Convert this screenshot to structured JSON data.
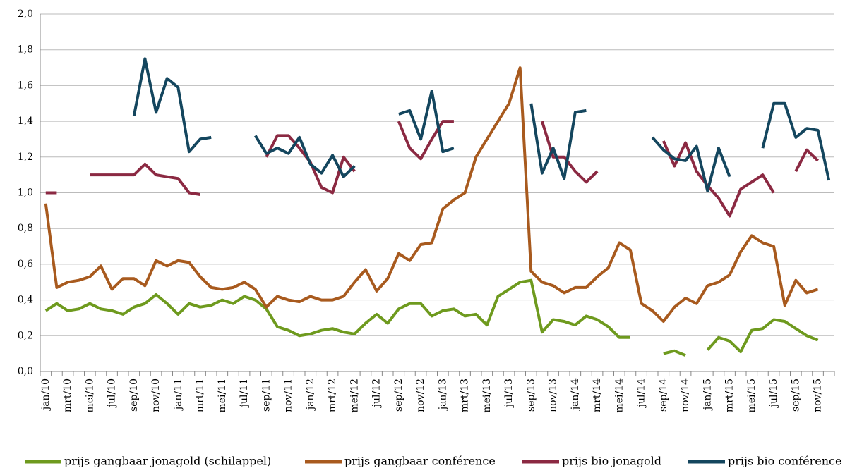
{
  "chart_data": {
    "type": "line",
    "categories": [
      "jan/10",
      null,
      "mrt/10",
      null,
      "mei/10",
      null,
      "jul/10",
      null,
      "sep/10",
      null,
      "nov/10",
      null,
      "jan/11",
      null,
      "mrt/11",
      null,
      "mei/11",
      null,
      "jul/11",
      null,
      "sep/11",
      null,
      "nov/11",
      null,
      "jan/12",
      null,
      "mrt/12",
      null,
      "mei/12",
      null,
      "jul/12",
      null,
      "sep/12",
      null,
      "nov/12",
      null,
      "jan/13",
      null,
      "mrt/13",
      null,
      "mei/13",
      null,
      "jul/13",
      null,
      "sep/13",
      null,
      "nov/13",
      null,
      "jan/14",
      null,
      "mrt/14",
      null,
      "mei/14",
      null,
      "jul/14",
      null,
      "sep/14",
      null,
      "nov/14",
      null,
      "jan/15",
      null,
      "mrt/15",
      null,
      "mei/15",
      null,
      "jul/15",
      null,
      "sep/15",
      null,
      "nov/15",
      null
    ],
    "series": [
      {
        "name": "prijs gangbaar jonagold (schilappel)",
        "color": "#6e9a1e",
        "values": [
          0.34,
          0.38,
          0.34,
          0.35,
          0.38,
          0.35,
          0.34,
          0.32,
          0.36,
          0.38,
          0.43,
          0.38,
          0.32,
          0.38,
          0.36,
          0.37,
          0.4,
          0.38,
          0.42,
          0.4,
          0.35,
          0.25,
          0.23,
          0.2,
          0.21,
          0.23,
          0.24,
          0.22,
          0.21,
          0.27,
          0.32,
          0.27,
          0.35,
          0.38,
          0.38,
          0.31,
          0.34,
          0.35,
          0.31,
          0.32,
          0.26,
          0.42,
          0.46,
          0.5,
          0.51,
          0.22,
          0.29,
          0.28,
          0.26,
          0.31,
          0.29,
          0.25,
          0.19,
          0.19,
          null,
          null,
          0.1,
          0.115,
          0.09,
          null,
          0.12,
          0.19,
          0.17,
          0.11,
          0.23,
          0.24,
          0.29,
          0.28,
          0.24,
          0.2,
          0.175,
          null
        ]
      },
      {
        "name": "prijs gangbaar conférence",
        "color": "#a85a1e",
        "values": [
          0.94,
          0.47,
          0.5,
          0.51,
          0.53,
          0.59,
          0.46,
          0.52,
          0.52,
          0.48,
          0.62,
          0.59,
          0.62,
          0.61,
          0.53,
          0.47,
          0.46,
          0.47,
          0.5,
          0.46,
          0.36,
          0.42,
          0.4,
          0.39,
          0.42,
          0.4,
          0.4,
          0.42,
          0.5,
          0.57,
          0.45,
          0.52,
          0.66,
          0.62,
          0.71,
          0.72,
          0.91,
          0.96,
          1.0,
          1.2,
          1.3,
          1.4,
          1.5,
          1.7,
          0.56,
          0.5,
          0.48,
          0.44,
          0.47,
          0.47,
          0.53,
          0.58,
          0.72,
          0.68,
          0.38,
          0.34,
          0.28,
          0.36,
          0.41,
          0.38,
          0.48,
          0.5,
          0.54,
          0.67,
          0.76,
          0.72,
          0.7,
          0.37,
          0.51,
          0.44,
          0.46,
          null
        ]
      },
      {
        "name": "prijs bio jonagold",
        "color": "#8b2942",
        "values": [
          1.0,
          1.0,
          null,
          null,
          1.1,
          1.1,
          1.1,
          1.1,
          1.1,
          1.16,
          1.1,
          1.09,
          1.08,
          1.0,
          0.99,
          null,
          null,
          null,
          null,
          null,
          1.2,
          1.32,
          1.32,
          1.25,
          1.17,
          1.03,
          1.0,
          1.2,
          1.12,
          null,
          null,
          null,
          1.4,
          1.25,
          1.19,
          1.3,
          1.4,
          1.4,
          null,
          null,
          null,
          null,
          null,
          null,
          null,
          1.4,
          1.2,
          1.2,
          1.12,
          1.06,
          1.12,
          null,
          null,
          null,
          null,
          null,
          1.29,
          1.15,
          1.28,
          1.12,
          1.04,
          0.97,
          0.87,
          1.02,
          1.06,
          1.1,
          1.0,
          null,
          1.12,
          1.24,
          1.18,
          null
        ]
      },
      {
        "name": "prijs bio conférence",
        "color": "#14465e",
        "values": [
          null,
          null,
          null,
          null,
          null,
          null,
          null,
          null,
          1.43,
          1.75,
          1.45,
          1.64,
          1.59,
          1.23,
          1.3,
          1.31,
          null,
          null,
          null,
          1.32,
          1.22,
          1.25,
          1.22,
          1.31,
          1.16,
          1.11,
          1.21,
          1.09,
          1.15,
          null,
          null,
          null,
          1.44,
          1.46,
          1.3,
          1.57,
          1.23,
          1.25,
          null,
          null,
          null,
          null,
          null,
          null,
          1.5,
          1.11,
          1.25,
          1.08,
          1.45,
          1.46,
          null,
          null,
          null,
          null,
          null,
          1.31,
          1.24,
          1.19,
          1.18,
          1.26,
          1.01,
          1.25,
          1.09,
          null,
          null,
          1.25,
          1.5,
          1.5,
          1.31,
          1.36,
          1.35,
          1.07
        ]
      }
    ],
    "ylim": [
      0,
      2
    ],
    "yticks": [
      {
        "value": 0,
        "label": "0,0"
      },
      {
        "value": 0.2,
        "label": "0,2"
      },
      {
        "value": 0.4,
        "label": "0,4"
      },
      {
        "value": 0.6,
        "label": "0,6"
      },
      {
        "value": 0.8,
        "label": "0,8"
      },
      {
        "value": 1,
        "label": "1,0"
      },
      {
        "value": 1.2,
        "label": "1,2"
      },
      {
        "value": 1.4,
        "label": "1,4"
      },
      {
        "value": 1.6,
        "label": "1,6"
      },
      {
        "value": 1.8,
        "label": "1,8"
      },
      {
        "value": 2,
        "label": "2,0"
      }
    ],
    "grid": true,
    "legend": "bottom"
  }
}
